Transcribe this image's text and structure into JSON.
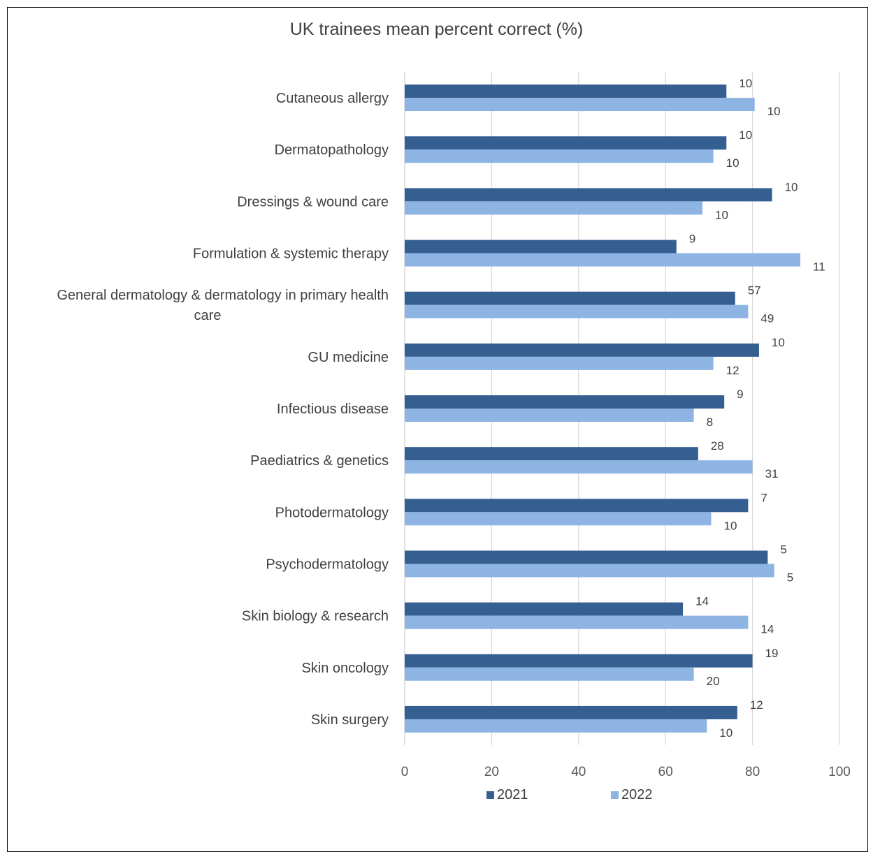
{
  "chart_data": {
    "type": "bar",
    "orientation": "horizontal",
    "title": "UK trainees mean percent correct (%)",
    "xlim": [
      0,
      100
    ],
    "x_ticks": [
      "0",
      "20",
      "40",
      "60",
      "80",
      "100"
    ],
    "grid": "vertical",
    "legend_position": "bottom",
    "categories": [
      "Cutaneous allergy",
      "Dermatopathology",
      "Dressings & wound care",
      "Formulation & systemic therapy",
      [
        "General dermatology & dermatology in primary health",
        "care"
      ],
      "GU medicine",
      "Infectious disease",
      "Paediatrics & genetics",
      "Photodermatology",
      "Psychodermatology",
      "Skin biology & research",
      "Skin oncology",
      "Skin surgery"
    ],
    "series": [
      {
        "name": "2021",
        "color": "#355f91",
        "values": [
          74,
          74,
          84.5,
          62.5,
          76,
          81.5,
          73.5,
          67.5,
          79,
          83.5,
          64,
          80,
          76.5
        ],
        "data_labels": [
          "10",
          "10",
          "10",
          "9",
          "57",
          "10",
          "9",
          "28",
          "7",
          "5",
          "14",
          "19",
          "12"
        ]
      },
      {
        "name": "2022",
        "color": "#8eb4e3",
        "values": [
          80.5,
          71,
          68.5,
          91,
          79,
          71,
          66.5,
          80,
          70.5,
          85,
          79,
          66.5,
          69.5
        ],
        "data_labels": [
          "10",
          "10",
          "10",
          "11",
          "49",
          "12",
          "8",
          "31",
          "10",
          "5",
          "14",
          "20",
          "10"
        ]
      }
    ]
  }
}
